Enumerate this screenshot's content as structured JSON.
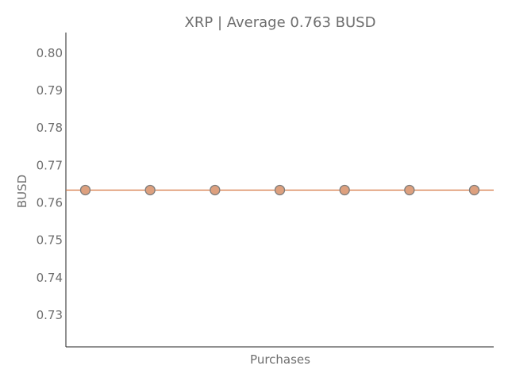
{
  "chart_data": {
    "type": "scatter",
    "title": "XRP | Average 0.763 BUSD",
    "xlabel": "Purchases",
    "ylabel": "BUSD",
    "ylim": [
      0.7215,
      0.8055
    ],
    "yticks": [
      "0.73",
      "0.74",
      "0.75",
      "0.76",
      "0.77",
      "0.78",
      "0.79",
      "0.80"
    ],
    "ytick_values": [
      0.73,
      0.74,
      0.75,
      0.76,
      0.77,
      0.78,
      0.79,
      0.8
    ],
    "x": [
      1,
      2,
      3,
      4,
      5,
      6,
      7
    ],
    "xlim": [
      0.7,
      7.3
    ],
    "series": [
      {
        "values": [
          0.7634,
          0.7634,
          0.7634,
          0.7634,
          0.7634,
          0.7634,
          0.7634
        ]
      }
    ],
    "average": 0.7634,
    "grid": false,
    "colors": {
      "point_fill": "#dda07e",
      "point_stroke": "#7c7c7c",
      "average_line": "#d4733f",
      "axis": "#222222",
      "text": "#6e6e6e"
    }
  }
}
